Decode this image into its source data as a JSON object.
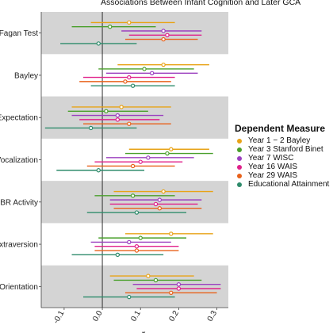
{
  "chart_data": {
    "type": "scatter",
    "subtype": "forest-plot",
    "title": "Associations Between Infant Cognition and Later GCA",
    "xlabel": "r",
    "ylabel": "",
    "xlim": [
      -0.16,
      0.33
    ],
    "xticks": [
      -0.1,
      0.0,
      0.1,
      0.2,
      0.3
    ],
    "xtick_labels": [
      "-0.1",
      "0.0",
      "0.1",
      "0.2",
      "0.3"
    ],
    "reference_line": 0,
    "grid": false,
    "band_fill": "#d4d4d4",
    "legend": {
      "title": "Dependent Measure",
      "position": "right",
      "items": [
        {
          "label": "Year 1 − 2 Bayley",
          "color": "#e8a317"
        },
        {
          "label": "Year 3 Stanford Binet",
          "color": "#4aa02c"
        },
        {
          "label": "Year 7 WISC",
          "color": "#9b3fbf"
        },
        {
          "label": "Year 16 WAIS",
          "color": "#e0218a"
        },
        {
          "label": "Year 29 WAIS",
          "color": "#e8611a"
        },
        {
          "label": "Educational Attainment",
          "color": "#2e8b6b"
        }
      ]
    },
    "groups": [
      {
        "label": "Fagan Test",
        "shaded": true,
        "estimates": [
          {
            "est": 0.07,
            "lo": -0.03,
            "hi": 0.19
          },
          {
            "est": 0.02,
            "lo": -0.08,
            "hi": 0.14
          },
          {
            "est": 0.16,
            "lo": 0.05,
            "hi": 0.26
          },
          {
            "est": 0.17,
            "lo": 0.07,
            "hi": 0.26
          },
          {
            "est": 0.16,
            "lo": 0.06,
            "hi": 0.25
          },
          {
            "est": -0.01,
            "lo": -0.11,
            "hi": 0.09
          }
        ]
      },
      {
        "label": "Bayley",
        "shaded": false,
        "estimates": [
          {
            "est": 0.16,
            "lo": 0.04,
            "hi": 0.28
          },
          {
            "est": 0.11,
            "lo": -0.01,
            "hi": 0.24
          },
          {
            "est": 0.13,
            "lo": 0.01,
            "hi": 0.25
          },
          {
            "est": 0.07,
            "lo": -0.05,
            "hi": 0.19
          },
          {
            "est": 0.06,
            "lo": -0.06,
            "hi": 0.18
          },
          {
            "est": 0.08,
            "lo": -0.03,
            "hi": 0.19
          }
        ]
      },
      {
        "label": "Expectation",
        "shaded": true,
        "estimates": [
          {
            "est": 0.05,
            "lo": -0.08,
            "hi": 0.18
          },
          {
            "est": 0.01,
            "lo": -0.09,
            "hi": 0.12
          },
          {
            "est": 0.04,
            "lo": -0.08,
            "hi": 0.16
          },
          {
            "est": 0.04,
            "lo": -0.06,
            "hi": 0.15
          },
          {
            "est": 0.07,
            "lo": -0.05,
            "hi": 0.18
          },
          {
            "est": -0.03,
            "lo": -0.15,
            "hi": 0.09
          }
        ]
      },
      {
        "label": "Vocalization",
        "shaded": false,
        "estimates": [
          {
            "est": 0.18,
            "lo": 0.07,
            "hi": 0.28
          },
          {
            "est": 0.17,
            "lo": 0.06,
            "hi": 0.29
          },
          {
            "est": 0.12,
            "lo": 0.01,
            "hi": 0.24
          },
          {
            "est": 0.1,
            "lo": -0.02,
            "hi": 0.21
          },
          {
            "est": 0.08,
            "lo": -0.04,
            "hi": 0.19
          },
          {
            "est": -0.01,
            "lo": -0.12,
            "hi": 0.11
          }
        ]
      },
      {
        "label": "IBR Activity",
        "shaded": true,
        "estimates": [
          {
            "est": 0.16,
            "lo": 0.03,
            "hi": 0.29
          },
          {
            "est": 0.08,
            "lo": -0.02,
            "hi": 0.19
          },
          {
            "est": 0.15,
            "lo": 0.02,
            "hi": 0.26
          },
          {
            "est": 0.14,
            "lo": 0.02,
            "hi": 0.25
          },
          {
            "est": 0.15,
            "lo": 0.03,
            "hi": 0.26
          },
          {
            "est": 0.09,
            "lo": -0.04,
            "hi": 0.22
          }
        ]
      },
      {
        "label": "Extraversion",
        "shaded": false,
        "estimates": [
          {
            "est": 0.18,
            "lo": 0.06,
            "hi": 0.29
          },
          {
            "est": 0.1,
            "lo": -0.01,
            "hi": 0.22
          },
          {
            "est": 0.07,
            "lo": -0.03,
            "hi": 0.18
          },
          {
            "est": 0.09,
            "lo": -0.02,
            "hi": 0.2
          },
          {
            "est": 0.09,
            "lo": -0.02,
            "hi": 0.2
          },
          {
            "est": 0.04,
            "lo": -0.08,
            "hi": 0.16
          }
        ]
      },
      {
        "label": "E Orientation",
        "shaded": true,
        "estimates": [
          {
            "est": 0.12,
            "lo": 0.02,
            "hi": 0.24
          },
          {
            "est": 0.14,
            "lo": 0.03,
            "hi": 0.26
          },
          {
            "est": 0.2,
            "lo": 0.08,
            "hi": 0.31
          },
          {
            "est": 0.2,
            "lo": 0.09,
            "hi": 0.31
          },
          {
            "est": 0.18,
            "lo": 0.06,
            "hi": 0.3
          },
          {
            "est": 0.07,
            "lo": -0.05,
            "hi": 0.19
          }
        ]
      }
    ]
  }
}
